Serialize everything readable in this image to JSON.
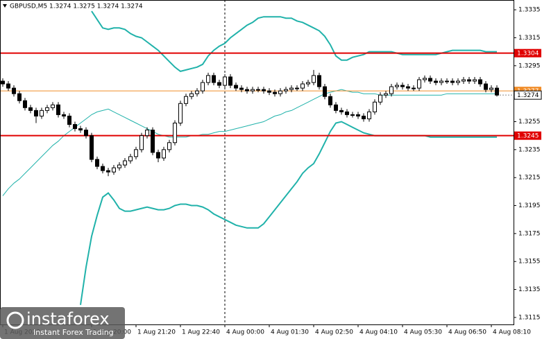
{
  "chart_data": {
    "type": "candlestick",
    "title": "GBPUSD,M5 1.3274 1.3275 1.3274 1.3274",
    "xlim": [
      -0.5,
      92
    ],
    "ylim": [
      1.3342,
      1.311
    ],
    "yticks": [
      1.3335,
      1.3315,
      1.3295,
      1.3255,
      1.3235,
      1.3215,
      1.3195,
      1.3175,
      1.3155,
      1.3135,
      1.3115
    ],
    "xticks": [
      {
        "value": 0,
        "label": "1 Aug 2020"
      },
      {
        "value": 16,
        "label": "1 Aug 20:00"
      },
      {
        "value": 24,
        "label": "1 Aug 21:20"
      },
      {
        "value": 32,
        "label": "1 Aug 22:40"
      },
      {
        "value": 40,
        "label": "4 Aug 00:00"
      },
      {
        "value": 48,
        "label": "4 Aug 01:30"
      },
      {
        "value": 56,
        "label": "4 Aug 02:50"
      },
      {
        "value": 64,
        "label": "4 Aug 04:10"
      },
      {
        "value": 72,
        "label": "4 Aug 05:30"
      },
      {
        "value": 80,
        "label": "4 Aug 06:50"
      },
      {
        "value": 88,
        "label": "4 Aug 08:10"
      }
    ],
    "grid": false,
    "period_separators": [
      40
    ],
    "up_color": "#ffffff",
    "down_color": "#000000",
    "open": [
      1.3284,
      1.3282,
      1.3279,
      1.3275,
      1.327,
      1.3265,
      1.3263,
      1.3259,
      1.3263,
      1.3265,
      1.3267,
      1.326,
      1.3259,
      1.3253,
      1.325,
      1.3249,
      1.3245,
      1.3228,
      1.3223,
      1.322,
      1.3219,
      1.3222,
      1.3224,
      1.3227,
      1.323,
      1.3235,
      1.3245,
      1.3249,
      1.3233,
      1.3229,
      1.3235,
      1.324,
      1.3254,
      1.3268,
      1.3273,
      1.3275,
      1.3277,
      1.3283,
      1.3288,
      1.3283,
      1.3281,
      1.3287,
      1.3281,
      1.3279,
      1.3278,
      1.3277,
      1.3278,
      1.3278,
      1.3277,
      1.3276,
      1.3275,
      1.3277,
      1.3278,
      1.3279,
      1.3279,
      1.3282,
      1.3283,
      1.3288,
      1.328,
      1.3273,
      1.3267,
      1.3263,
      1.3262,
      1.326,
      1.326,
      1.3259,
      1.3257,
      1.3262,
      1.3269,
      1.3274,
      1.3275,
      1.328,
      1.3281,
      1.328,
      1.3279,
      1.3279,
      1.3285,
      1.3286,
      1.3284,
      1.3283,
      1.3284,
      1.3284,
      1.3283,
      1.3284,
      1.3285,
      1.3284,
      1.3285,
      1.3282,
      1.3278,
      1.3279
    ],
    "high": [
      1.3286,
      1.3284,
      1.3281,
      1.3277,
      1.3272,
      1.3267,
      1.3265,
      1.3265,
      1.3267,
      1.3269,
      1.3269,
      1.3262,
      1.3261,
      1.3255,
      1.3252,
      1.3251,
      1.3247,
      1.323,
      1.3225,
      1.3222,
      1.3224,
      1.3226,
      1.3229,
      1.3232,
      1.3237,
      1.3247,
      1.3251,
      1.3251,
      1.3235,
      1.3237,
      1.3242,
      1.3256,
      1.327,
      1.3275,
      1.3277,
      1.3279,
      1.3285,
      1.329,
      1.329,
      1.3285,
      1.3289,
      1.3289,
      1.3283,
      1.3281,
      1.328,
      1.328,
      1.328,
      1.328,
      1.3279,
      1.3278,
      1.3279,
      1.328,
      1.3281,
      1.3281,
      1.3284,
      1.3285,
      1.3292,
      1.329,
      1.3282,
      1.3275,
      1.3269,
      1.3265,
      1.3264,
      1.3262,
      1.3262,
      1.3261,
      1.3264,
      1.3271,
      1.3276,
      1.3277,
      1.3282,
      1.3283,
      1.3283,
      1.3282,
      1.3281,
      1.3287,
      1.3288,
      1.3288,
      1.3286,
      1.3286,
      1.3286,
      1.3286,
      1.3286,
      1.3287,
      1.3287,
      1.3287,
      1.3287,
      1.3284,
      1.3281,
      1.3281
    ],
    "low": [
      1.328,
      1.3277,
      1.3273,
      1.3268,
      1.3263,
      1.3261,
      1.3254,
      1.3257,
      1.3261,
      1.3263,
      1.3258,
      1.3257,
      1.3251,
      1.3248,
      1.3247,
      1.3243,
      1.3226,
      1.3221,
      1.3218,
      1.3216,
      1.3217,
      1.322,
      1.3222,
      1.3225,
      1.3228,
      1.3233,
      1.3243,
      1.3231,
      1.3226,
      1.3227,
      1.3233,
      1.3238,
      1.3252,
      1.3266,
      1.3271,
      1.3273,
      1.3275,
      1.3281,
      1.3281,
      1.3279,
      1.3279,
      1.3279,
      1.3277,
      1.3276,
      1.3275,
      1.3275,
      1.3276,
      1.3275,
      1.3274,
      1.3273,
      1.3273,
      1.3275,
      1.3276,
      1.3277,
      1.3277,
      1.328,
      1.3281,
      1.3278,
      1.3271,
      1.3265,
      1.3261,
      1.326,
      1.3258,
      1.3258,
      1.3257,
      1.3255,
      1.3255,
      1.326,
      1.3267,
      1.3272,
      1.3273,
      1.3278,
      1.3278,
      1.3277,
      1.3277,
      1.3277,
      1.3283,
      1.3282,
      1.3281,
      1.3281,
      1.3282,
      1.3281,
      1.3281,
      1.3282,
      1.3282,
      1.3282,
      1.328,
      1.3276,
      1.3276,
      1.3273
    ],
    "close": [
      1.3282,
      1.3279,
      1.3275,
      1.327,
      1.3265,
      1.3263,
      1.3259,
      1.3263,
      1.3265,
      1.3267,
      1.326,
      1.3259,
      1.3253,
      1.325,
      1.3249,
      1.3245,
      1.3228,
      1.3223,
      1.322,
      1.3219,
      1.3222,
      1.3224,
      1.3227,
      1.323,
      1.3235,
      1.3245,
      1.3249,
      1.3233,
      1.3229,
      1.3235,
      1.324,
      1.3254,
      1.3268,
      1.3273,
      1.3275,
      1.3277,
      1.3283,
      1.3288,
      1.3283,
      1.3281,
      1.3287,
      1.3281,
      1.3279,
      1.3278,
      1.3277,
      1.3278,
      1.3278,
      1.3277,
      1.3276,
      1.3275,
      1.3277,
      1.3278,
      1.3279,
      1.3279,
      1.3282,
      1.3283,
      1.3288,
      1.328,
      1.3273,
      1.3267,
      1.3263,
      1.3262,
      1.326,
      1.326,
      1.3259,
      1.3257,
      1.3262,
      1.3269,
      1.3274,
      1.3275,
      1.328,
      1.3281,
      1.328,
      1.3279,
      1.3279,
      1.3285,
      1.3286,
      1.3284,
      1.3283,
      1.3284,
      1.3284,
      1.3283,
      1.3284,
      1.3285,
      1.3284,
      1.3285,
      1.3282,
      1.3278,
      1.3279,
      1.3274
    ],
    "indicators": [
      {
        "color": "#20b2aa",
        "width": 2,
        "values": [
          null,
          null,
          null,
          null,
          null,
          null,
          null,
          null,
          null,
          null,
          null,
          null,
          null,
          null,
          null,
          null,
          1.3334,
          1.3328,
          1.3322,
          1.3321,
          1.3322,
          1.3322,
          1.3321,
          1.3318,
          1.3316,
          1.3315,
          1.3312,
          1.3309,
          1.3306,
          1.3302,
          1.3298,
          1.3294,
          1.3291,
          1.3292,
          1.3293,
          1.3294,
          1.3296,
          1.3302,
          1.3306,
          1.3309,
          1.3311,
          1.3315,
          1.3318,
          1.3321,
          1.3324,
          1.3326,
          1.3329,
          1.333,
          1.333,
          1.333,
          1.333,
          1.3329,
          1.3329,
          1.3327,
          1.3326,
          1.3324,
          1.3322,
          1.332,
          1.3316,
          1.331,
          1.3302,
          1.3299,
          1.3299,
          1.3301,
          1.3302,
          1.3303,
          1.3305,
          1.3305,
          1.3305,
          1.3305,
          1.3305,
          1.3304,
          1.3303,
          1.3303,
          1.3303,
          1.3303,
          1.3303,
          1.3303,
          1.3303,
          1.3304,
          1.3305,
          1.3306,
          1.3306,
          1.3306,
          1.3306,
          1.3306,
          1.3306,
          1.3305,
          1.3305,
          1.3305
        ]
      },
      {
        "color": "#20b2aa",
        "width": 1,
        "values": [
          1.3202,
          1.3207,
          1.3211,
          1.3214,
          1.3218,
          1.3222,
          1.3226,
          1.323,
          1.3234,
          1.3238,
          1.3241,
          1.3245,
          1.3248,
          1.3251,
          1.3254,
          1.3257,
          1.326,
          1.3262,
          1.3263,
          1.3264,
          1.3262,
          1.326,
          1.3258,
          1.3256,
          1.3254,
          1.3252,
          1.325,
          1.3248,
          1.3246,
          1.3245,
          1.3244,
          1.3244,
          1.3244,
          1.3244,
          1.3245,
          1.3245,
          1.3246,
          1.3246,
          1.3247,
          1.3248,
          1.3248,
          1.3249,
          1.325,
          1.3251,
          1.3252,
          1.3253,
          1.3254,
          1.3255,
          1.3257,
          1.3259,
          1.326,
          1.3262,
          1.3263,
          1.3265,
          1.3267,
          1.3269,
          1.3271,
          1.3273,
          1.3275,
          1.3276,
          1.3277,
          1.3278,
          1.3277,
          1.3276,
          1.3276,
          1.3275,
          1.3275,
          1.3275,
          1.3274,
          1.3274,
          1.3274,
          1.3274,
          1.3274,
          1.3274,
          1.3274,
          1.3274,
          1.3274,
          1.3274,
          1.3274,
          1.3274,
          1.3275,
          1.3275,
          1.3275,
          1.3275,
          1.3275,
          1.3275,
          1.3275,
          1.3275,
          1.3275,
          1.3275
        ]
      },
      {
        "color": "#20b2aa",
        "width": 2,
        "values": [
          null,
          null,
          null,
          null,
          null,
          null,
          null,
          null,
          null,
          null,
          null,
          null,
          null,
          null,
          1.3124,
          1.3151,
          1.3173,
          1.3188,
          1.3201,
          1.3204,
          1.3199,
          1.3193,
          1.3191,
          1.3191,
          1.3192,
          1.3193,
          1.3194,
          1.3193,
          1.3192,
          1.3192,
          1.3193,
          1.3195,
          1.3196,
          1.3196,
          1.3195,
          1.3195,
          1.3194,
          1.3192,
          1.3189,
          1.3187,
          1.3185,
          1.3183,
          1.3181,
          1.318,
          1.3179,
          1.3179,
          1.3179,
          1.3182,
          1.3187,
          1.3192,
          1.3197,
          1.3202,
          1.3207,
          1.3212,
          1.3218,
          1.3222,
          1.3225,
          1.3232,
          1.324,
          1.3248,
          1.3254,
          1.3255,
          1.3253,
          1.3251,
          1.3249,
          1.3247,
          1.3246,
          1.3245,
          1.3245,
          1.3245,
          1.3245,
          1.3245,
          1.3245,
          1.3245,
          1.3245,
          1.3245,
          1.3245,
          1.3244,
          1.3244,
          1.3244,
          1.3244,
          1.3244,
          1.3244,
          1.3244,
          1.3244,
          1.3244,
          1.3244,
          1.3244,
          1.3244,
          1.3244
        ]
      }
    ],
    "levels": [
      {
        "value": 1.3304,
        "color": "#e00000"
      },
      {
        "value": 1.3245,
        "color": "#e00000"
      },
      {
        "value": 1.3277,
        "color": "#f08c28"
      }
    ],
    "last_price": 1.3274
  },
  "logo": {
    "name": "instaforex",
    "tagline": "Instant Forex Trading"
  }
}
